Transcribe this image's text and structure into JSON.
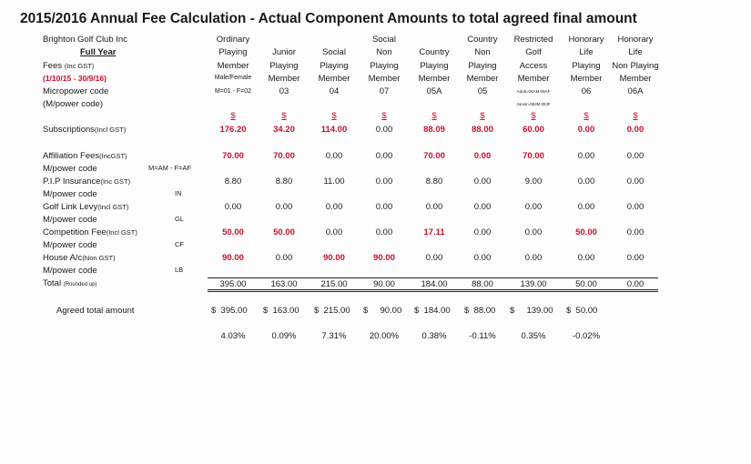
{
  "title": "2015/2016 Annual Fee Calculation - Actual Component Amounts to total agreed final amount",
  "club": "Brighton Golf Club Inc",
  "full_year": "Full Year",
  "fees_label": "Fees",
  "fees_suffix": "(Inc GST)",
  "period": "(1/10/15 - 30/9/16)",
  "micropower_label": "Micropower code",
  "mpower_paren": "(M/power code)",
  "columns": [
    {
      "h1": "Ordinary",
      "h2": "Playing",
      "h3": "Member",
      "code": "M=01 - F=02"
    },
    {
      "h1": "",
      "h2": "Junior",
      "h3": "Playing",
      "h4": "Member",
      "code": "03"
    },
    {
      "h1": "",
      "h2": "Social",
      "h3": "Playing",
      "h4": "Member",
      "code": "04"
    },
    {
      "h1": "Social",
      "h2": "Non",
      "h3": "Playing",
      "h4": "Member",
      "code": "07"
    },
    {
      "h1": "",
      "h2": "Country",
      "h3": "Playing",
      "h4": "Member",
      "code": "05A"
    },
    {
      "h1": "Country",
      "h2": "Non",
      "h3": "Playing",
      "h4": "Member",
      "code": "05"
    },
    {
      "h1": "Restricted",
      "h2": "Golf",
      "h3": "Access",
      "h4": "Member",
      "code": "Adult=08AM 08AF",
      "code2": "Junior=08JM 08JF"
    },
    {
      "h1": "Honorary",
      "h2": "Life",
      "h3": "Playing",
      "h4": "Member",
      "code": "06"
    },
    {
      "h1": "Honorary",
      "h2": "Life",
      "h3": "Non Playing",
      "h4": "Member",
      "code": "06A"
    }
  ],
  "ordinary_h4": "Male/Female",
  "dollar": "$",
  "rows": [
    {
      "label": "Subscriptions",
      "suffix": "(Incl GST)",
      "values": [
        "176.20",
        "34.20",
        "114.00",
        "0.00",
        "88.09",
        "88.00",
        "60.00",
        "0.00",
        "0.00"
      ],
      "red": [
        true,
        true,
        true,
        false,
        true,
        true,
        true,
        true,
        true
      ]
    },
    {
      "label": "Affiliation Fees",
      "suffix": "(IncGST)",
      "values": [
        "70.00",
        "70.00",
        "0.00",
        "0.00",
        "70.00",
        "0.00",
        "70.00",
        "0.00",
        "0.00"
      ],
      "red": [
        true,
        true,
        false,
        false,
        true,
        true,
        true,
        false,
        false
      ],
      "code_label": "M/power code",
      "code": "M=AM - F=AF"
    },
    {
      "label": "P.I.P Insurance",
      "suffix": "(Inc GST)",
      "values": [
        "8.80",
        "8.80",
        "11.00",
        "0.00",
        "8.80",
        "0.00",
        "9.00",
        "0.00",
        "0.00"
      ],
      "red": [
        false,
        false,
        false,
        false,
        false,
        false,
        false,
        false,
        false
      ],
      "code_label": "M/power code",
      "code": "IN"
    },
    {
      "label": "Golf Link Levy",
      "suffix": "(Incl GST)",
      "values": [
        "0.00",
        "0.00",
        "0.00",
        "0.00",
        "0.00",
        "0.00",
        "0.00",
        "0.00",
        "0.00"
      ],
      "red": [
        false,
        false,
        false,
        false,
        false,
        false,
        false,
        false,
        false
      ],
      "code_label": "M/power code",
      "code": "GL"
    },
    {
      "label": "Competition Fee",
      "suffix": "(Incl GST)",
      "values": [
        "50.00",
        "50.00",
        "0.00",
        "0.00",
        "17.11",
        "0.00",
        "0.00",
        "50.00",
        "0.00"
      ],
      "red": [
        true,
        true,
        false,
        false,
        true,
        false,
        false,
        true,
        false
      ],
      "code_label": "M/power code",
      "code": "CF"
    },
    {
      "label": "House A/c",
      "suffix": "(Non GST)",
      "values": [
        "90.00",
        "0.00",
        "90.00",
        "90.00",
        "0.00",
        "0.00",
        "0.00",
        "0.00",
        "0.00"
      ],
      "red": [
        true,
        false,
        true,
        true,
        false,
        false,
        false,
        false,
        false
      ],
      "code_label": "M/power code",
      "code": "LB"
    }
  ],
  "total": {
    "label": "Total",
    "suffix": "(Rounded up)",
    "values": [
      "395.00",
      "163.00",
      "215.00",
      "90.00",
      "184.00",
      "88.00",
      "139.00",
      "50.00",
      "0.00"
    ]
  },
  "agreed": {
    "label": "Agreed total amount",
    "values": [
      "$  395.00",
      "$  163.00",
      "$  215.00",
      "$     90.00",
      "$  184.00",
      "$  88.00",
      "$     139.00",
      "$  50.00",
      ""
    ]
  },
  "percent": [
    "4.03%",
    "0.09%",
    "7.31%",
    "20.00%",
    "0.38%",
    "-0.11%",
    "0.35%",
    "-0.02%",
    ""
  ]
}
